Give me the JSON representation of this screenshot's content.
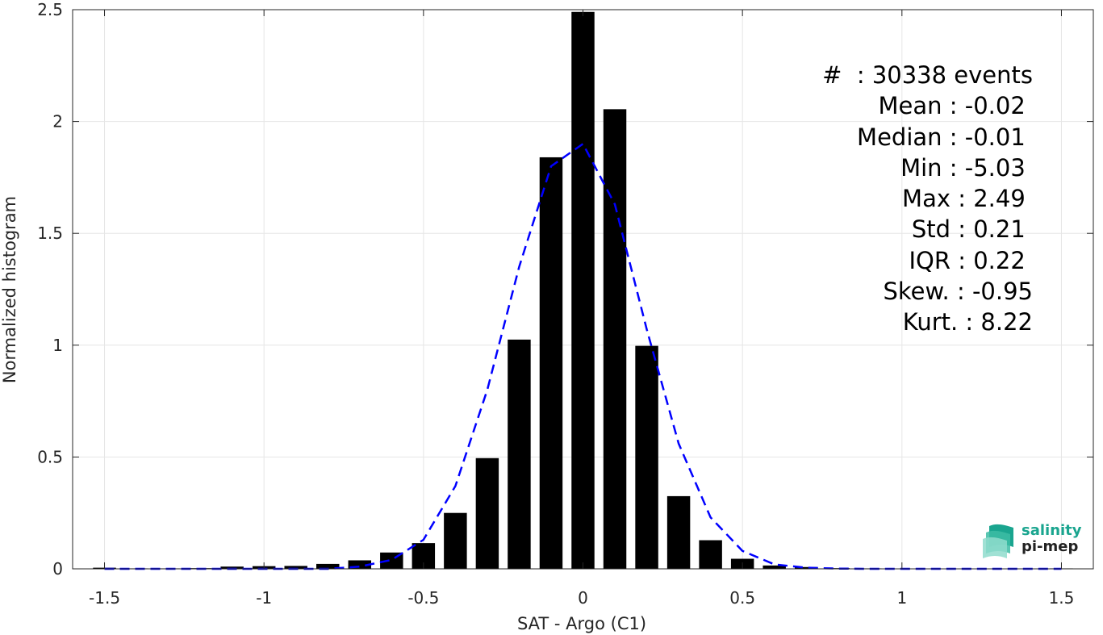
{
  "chart_data": {
    "type": "bar",
    "xlabel": "SAT - Argo (C1)",
    "ylabel": "Normalized histogram",
    "xlim": [
      -1.6,
      1.6
    ],
    "ylim": [
      0,
      2.5
    ],
    "xticks": [
      -1.5,
      -1,
      -0.5,
      0,
      0.5,
      1,
      1.5
    ],
    "xtick_labels": [
      "-1.5",
      "-1",
      "-0.5",
      "0",
      "0.5",
      "1",
      "1.5"
    ],
    "yticks": [
      0,
      0.5,
      1,
      1.5,
      2,
      2.5
    ],
    "ytick_labels": [
      "0",
      "0.5",
      "1",
      "1.5",
      "2",
      "2.5"
    ],
    "grid": true,
    "bar_color": "#000000",
    "fit_color": "#0000ff",
    "bars": {
      "x": [
        -1.5,
        -1.4,
        -1.3,
        -1.2,
        -1.1,
        -1.0,
        -0.9,
        -0.8,
        -0.7,
        -0.6,
        -0.5,
        -0.4,
        -0.3,
        -0.2,
        -0.1,
        0.0,
        0.1,
        0.2,
        0.3,
        0.4,
        0.5,
        0.6,
        0.7,
        0.8,
        0.9,
        1.0,
        1.1,
        1.2,
        1.3,
        1.4,
        1.5
      ],
      "values": [
        0.005,
        0.002,
        0.002,
        0.003,
        0.01,
        0.012,
        0.013,
        0.022,
        0.038,
        0.073,
        0.115,
        0.25,
        0.495,
        1.025,
        1.84,
        2.49,
        2.055,
        0.997,
        0.325,
        0.128,
        0.045,
        0.015,
        0.008,
        0.003,
        0.002,
        0.001,
        0.001,
        0.001,
        0.001,
        0.001,
        0.002
      ]
    },
    "fit_series": {
      "x": [
        -1.5,
        -1.4,
        -1.3,
        -1.2,
        -1.1,
        -1.0,
        -0.9,
        -0.8,
        -0.7,
        -0.6,
        -0.5,
        -0.4,
        -0.3,
        -0.2,
        -0.1,
        0.0,
        0.1,
        0.2,
        0.3,
        0.4,
        0.5,
        0.6,
        0.7,
        0.8,
        0.9,
        1.0,
        1.1,
        1.2,
        1.3,
        1.4,
        1.5
      ],
      "y": [
        0.0,
        0.0,
        0.0,
        0.0,
        0.0,
        0.0,
        0.0,
        0.0,
        0.01,
        0.04,
        0.13,
        0.37,
        0.8,
        1.35,
        1.8,
        1.9,
        1.63,
        1.07,
        0.56,
        0.23,
        0.08,
        0.02,
        0.005,
        0.001,
        0.0,
        0.0,
        0.0,
        0.0,
        0.0,
        0.0,
        0.0
      ]
    },
    "annotations": [
      "#  : 30338 events",
      "Mean : -0.02 ",
      "Median : -0.01 ",
      "Min : -5.03 ",
      "Max : 2.49 ",
      "Std : 0.21 ",
      "IQR : 0.22 ",
      "Skew. : -0.95",
      "Kurt. : 8.22"
    ]
  },
  "logo": {
    "line1": "salinity",
    "line2": "pi-mep",
    "color": "#1aa58f"
  }
}
